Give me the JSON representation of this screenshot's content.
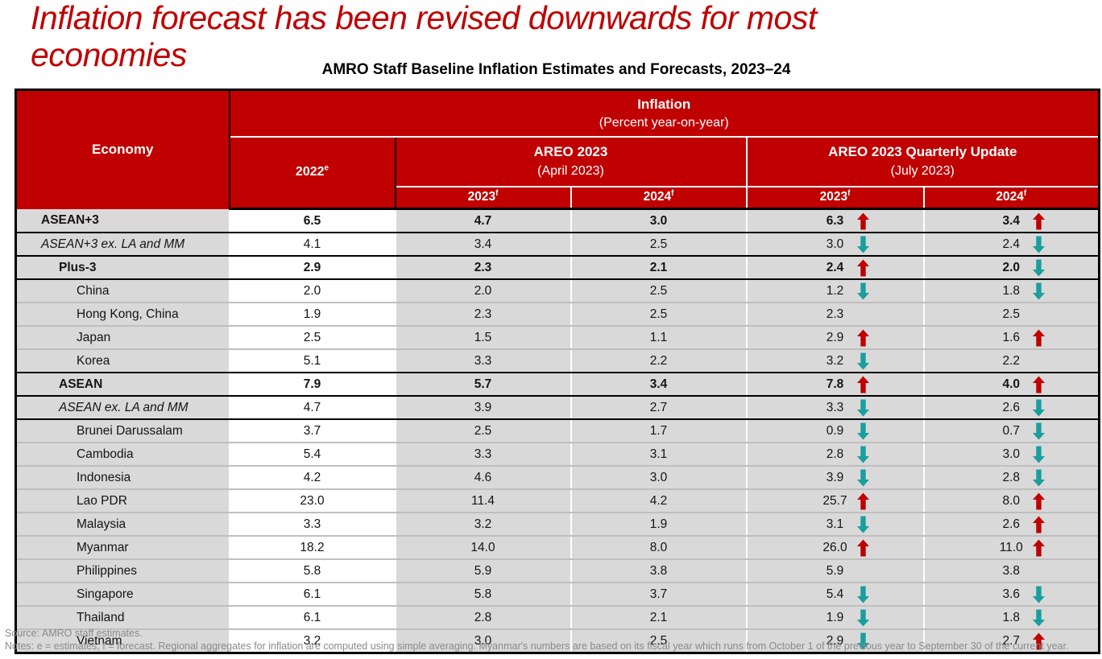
{
  "page": {
    "slide_title": "Inflation forecast has been revised downwards for most economies",
    "table_title": "AMRO Staff Baseline Inflation Estimates and Forecasts, 2023–24"
  },
  "colors": {
    "header_red": "#C00000",
    "title_red": "#C00000",
    "cell_gray": "#D9D9D9",
    "arrow_up_red": "#C00000",
    "arrow_down_teal": "#1A9E9E"
  },
  "table": {
    "header": {
      "economy": "Economy",
      "inflation_title": "Inflation",
      "inflation_subtitle": "(Percent year-on-year)",
      "col_2022": {
        "label": "2022",
        "sup": "e"
      },
      "areo": {
        "title": "AREO 2023",
        "subtitle": "(April 2023)"
      },
      "quarterly": {
        "title": "AREO 2023 Quarterly Update",
        "subtitle": "(July 2023)"
      },
      "apr_2023": {
        "label": "2023",
        "sup": "f"
      },
      "apr_2024": {
        "label": "2024",
        "sup": "f"
      },
      "jul_2023": {
        "label": "2023",
        "sup": "f"
      },
      "jul_2024": {
        "label": "2024",
        "sup": "f"
      }
    },
    "rows": [
      {
        "name": "ASEAN+3",
        "indent": 1,
        "bold": true,
        "italic": false,
        "border": "black",
        "v2022": "6.5",
        "apr23": "4.7",
        "apr24": "3.0",
        "jul23": "6.3",
        "jul23_arrow": "up",
        "jul24": "3.4",
        "jul24_arrow": "up"
      },
      {
        "name": "ASEAN+3 ex. LA and MM",
        "indent": 1,
        "bold": false,
        "italic": true,
        "border": "black",
        "v2022": "4.1",
        "apr23": "3.4",
        "apr24": "2.5",
        "jul23": "3.0",
        "jul23_arrow": "down",
        "jul24": "2.4",
        "jul24_arrow": "down"
      },
      {
        "name": "Plus-3",
        "indent": 2,
        "bold": true,
        "italic": false,
        "border": "black",
        "v2022": "2.9",
        "apr23": "2.3",
        "apr24": "2.1",
        "jul23": "2.4",
        "jul23_arrow": "up",
        "jul24": "2.0",
        "jul24_arrow": "down"
      },
      {
        "name": "China",
        "indent": 3,
        "bold": false,
        "italic": false,
        "border": "gray",
        "v2022": "2.0",
        "apr23": "2.0",
        "apr24": "2.5",
        "jul23": "1.2",
        "jul23_arrow": "down",
        "jul24": "1.8",
        "jul24_arrow": "down"
      },
      {
        "name": "Hong Kong, China",
        "indent": 3,
        "bold": false,
        "italic": false,
        "border": "gray",
        "v2022": "1.9",
        "apr23": "2.3",
        "apr24": "2.5",
        "jul23": "2.3",
        "jul23_arrow": "",
        "jul24": "2.5",
        "jul24_arrow": ""
      },
      {
        "name": "Japan",
        "indent": 3,
        "bold": false,
        "italic": false,
        "border": "gray",
        "v2022": "2.5",
        "apr23": "1.5",
        "apr24": "1.1",
        "jul23": "2.9",
        "jul23_arrow": "up",
        "jul24": "1.6",
        "jul24_arrow": "up"
      },
      {
        "name": "Korea",
        "indent": 3,
        "bold": false,
        "italic": false,
        "border": "black",
        "v2022": "5.1",
        "apr23": "3.3",
        "apr24": "2.2",
        "jul23": "3.2",
        "jul23_arrow": "down",
        "jul24": "2.2",
        "jul24_arrow": ""
      },
      {
        "name": "ASEAN",
        "indent": 2,
        "bold": true,
        "italic": false,
        "border": "black",
        "v2022": "7.9",
        "apr23": "5.7",
        "apr24": "3.4",
        "jul23": "7.8",
        "jul23_arrow": "up",
        "jul24": "4.0",
        "jul24_arrow": "up"
      },
      {
        "name": "ASEAN ex. LA and MM",
        "indent": 2,
        "bold": false,
        "italic": true,
        "border": "black",
        "v2022": "4.7",
        "apr23": "3.9",
        "apr24": "2.7",
        "jul23": "3.3",
        "jul23_arrow": "down",
        "jul24": "2.6",
        "jul24_arrow": "down"
      },
      {
        "name": "Brunei Darussalam",
        "indent": 3,
        "bold": false,
        "italic": false,
        "border": "gray",
        "v2022": "3.7",
        "apr23": "2.5",
        "apr24": "1.7",
        "jul23": "0.9",
        "jul23_arrow": "down",
        "jul24": "0.7",
        "jul24_arrow": "down"
      },
      {
        "name": "Cambodia",
        "indent": 3,
        "bold": false,
        "italic": false,
        "border": "gray",
        "v2022": "5.4",
        "apr23": "3.3",
        "apr24": "3.1",
        "jul23": "2.8",
        "jul23_arrow": "down",
        "jul24": "3.0",
        "jul24_arrow": "down"
      },
      {
        "name": "Indonesia",
        "indent": 3,
        "bold": false,
        "italic": false,
        "border": "gray",
        "v2022": "4.2",
        "apr23": "4.6",
        "apr24": "3.0",
        "jul23": "3.9",
        "jul23_arrow": "down",
        "jul24": "2.8",
        "jul24_arrow": "down"
      },
      {
        "name": "Lao PDR",
        "indent": 3,
        "bold": false,
        "italic": false,
        "border": "gray",
        "v2022": "23.0",
        "apr23": "11.4",
        "apr24": "4.2",
        "jul23": "25.7",
        "jul23_arrow": "up",
        "jul24": "8.0",
        "jul24_arrow": "up"
      },
      {
        "name": "Malaysia",
        "indent": 3,
        "bold": false,
        "italic": false,
        "border": "gray",
        "v2022": "3.3",
        "apr23": "3.2",
        "apr24": "1.9",
        "jul23": "3.1",
        "jul23_arrow": "down",
        "jul24": "2.6",
        "jul24_arrow": "up"
      },
      {
        "name": "Myanmar",
        "indent": 3,
        "bold": false,
        "italic": false,
        "border": "gray",
        "v2022": "18.2",
        "apr23": "14.0",
        "apr24": "8.0",
        "jul23": "26.0",
        "jul23_arrow": "up",
        "jul24": "11.0",
        "jul24_arrow": "up"
      },
      {
        "name": "Philippines",
        "indent": 3,
        "bold": false,
        "italic": false,
        "border": "gray",
        "v2022": "5.8",
        "apr23": "5.9",
        "apr24": "3.8",
        "jul23": "5.9",
        "jul23_arrow": "",
        "jul24": "3.8",
        "jul24_arrow": ""
      },
      {
        "name": "Singapore",
        "indent": 3,
        "bold": false,
        "italic": false,
        "border": "gray",
        "v2022": "6.1",
        "apr23": "5.8",
        "apr24": "3.7",
        "jul23": "5.4",
        "jul23_arrow": "down",
        "jul24": "3.6",
        "jul24_arrow": "down"
      },
      {
        "name": "Thailand",
        "indent": 3,
        "bold": false,
        "italic": false,
        "border": "gray",
        "v2022": "6.1",
        "apr23": "2.8",
        "apr24": "2.1",
        "jul23": "1.9",
        "jul23_arrow": "down",
        "jul24": "1.8",
        "jul24_arrow": "down"
      },
      {
        "name": "Vietnam",
        "indent": 3,
        "bold": false,
        "italic": false,
        "border": "none",
        "v2022": "3.2",
        "apr23": "3.0",
        "apr24": "2.5",
        "jul23": "2.9",
        "jul23_arrow": "down",
        "jul24": "2.7",
        "jul24_arrow": "up"
      }
    ]
  },
  "footer": {
    "source": "Source: AMRO staff estimates.",
    "notes": "Notes: e = estimates, f = forecast. Regional aggregates for inflation are computed using simple averaging. Myanmar's numbers are based on its fiscal year which runs from October 1 of the previous year to September 30 of the current year."
  }
}
